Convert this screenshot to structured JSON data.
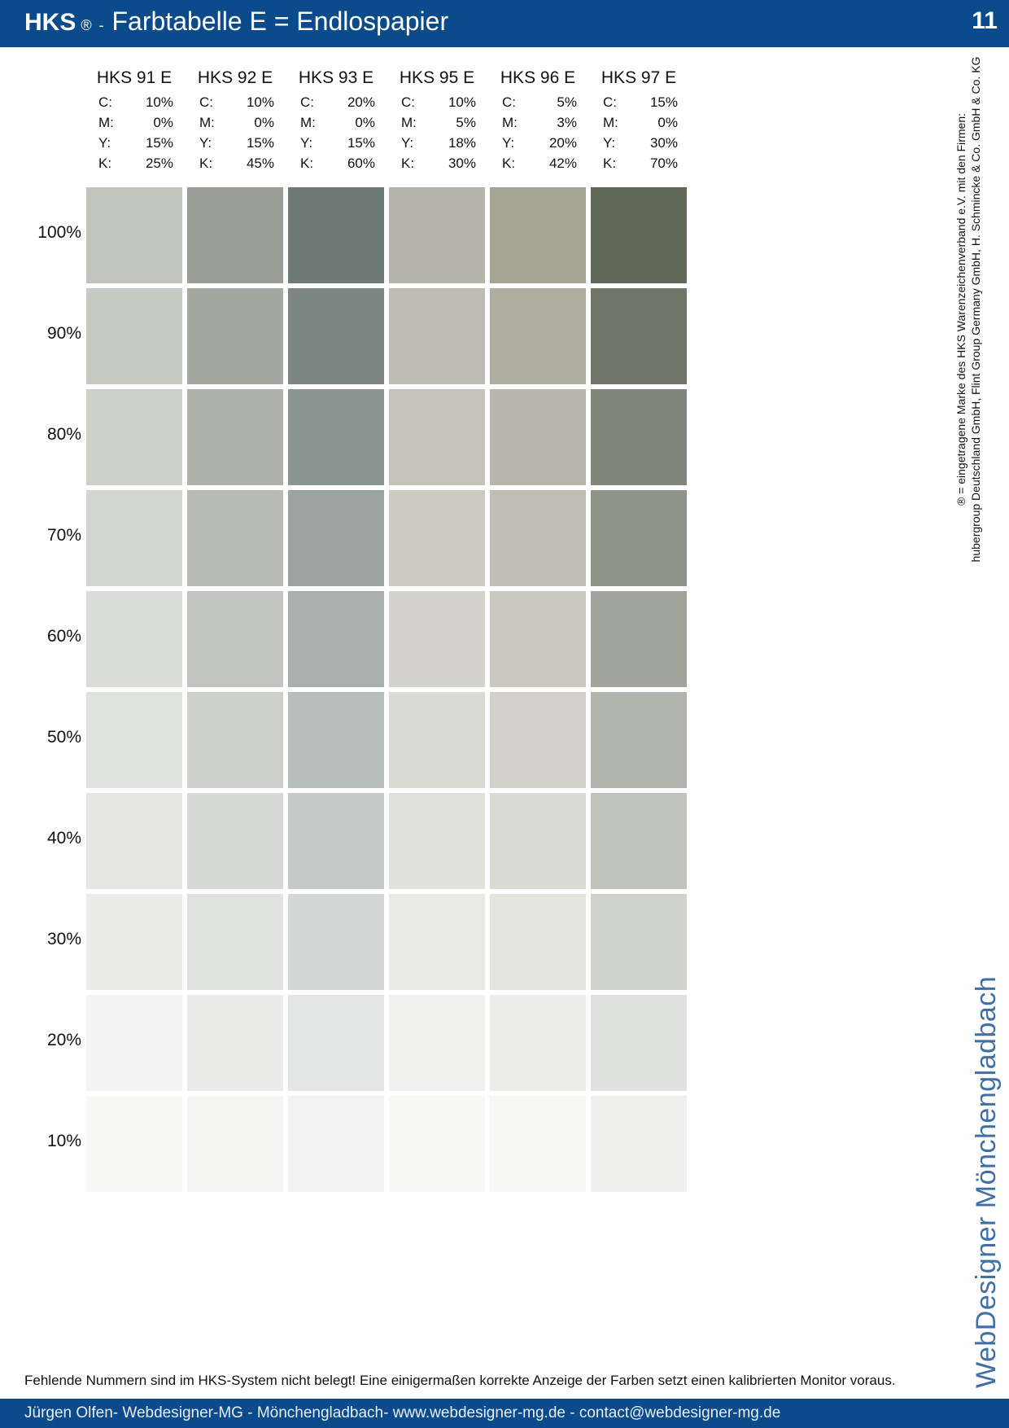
{
  "header": {
    "brand": "HKS",
    "reg_mark": "®",
    "dash": "-",
    "title": "Farbtabelle E = Endlospapier",
    "page_number": "11"
  },
  "columns": [
    {
      "name": "HKS 91 E",
      "cmyk": [
        [
          "C:",
          "10%"
        ],
        [
          "M:",
          "0%"
        ],
        [
          "Y:",
          "15%"
        ],
        [
          "K:",
          "25%"
        ]
      ],
      "color": "#c0c4bc"
    },
    {
      "name": "HKS 92 E",
      "cmyk": [
        [
          "C:",
          "10%"
        ],
        [
          "M:",
          "0%"
        ],
        [
          "Y:",
          "15%"
        ],
        [
          "K:",
          "45%"
        ]
      ],
      "color": "#999e95"
    },
    {
      "name": "HKS 93 E",
      "cmyk": [
        [
          "C:",
          "20%"
        ],
        [
          "M:",
          "0%"
        ],
        [
          "Y:",
          "15%"
        ],
        [
          "K:",
          "60%"
        ]
      ],
      "color": "#6e7b77"
    },
    {
      "name": "HKS 95 E",
      "cmyk": [
        [
          "C:",
          "10%"
        ],
        [
          "M:",
          "5%"
        ],
        [
          "Y:",
          "18%"
        ],
        [
          "K:",
          "30%"
        ]
      ],
      "color": "#b5b4a8"
    },
    {
      "name": "HKS 96 E",
      "cmyk": [
        [
          "C:",
          "5%"
        ],
        [
          "M:",
          "3%"
        ],
        [
          "Y:",
          "20%"
        ],
        [
          "K:",
          "42%"
        ]
      ],
      "color": "#a6a495"
    },
    {
      "name": "HKS 97 E",
      "cmyk": [
        [
          "C:",
          "15%"
        ],
        [
          "M:",
          "0%"
        ],
        [
          "Y:",
          "30%"
        ],
        [
          "K:",
          "70%"
        ]
      ],
      "color": "#606858"
    }
  ],
  "tints": [
    "100%",
    "90%",
    "80%",
    "70%",
    "60%",
    "50%",
    "40%",
    "30%",
    "20%",
    "10%"
  ],
  "tint_fractions": [
    1.0,
    0.9,
    0.8,
    0.7,
    0.6,
    0.5,
    0.4,
    0.3,
    0.2,
    0.1
  ],
  "side_note": {
    "line1": "® = eingetragene Marke des HKS Warenzeichenverband e.V. mit den Firmen:",
    "line2": "hubergroup Deutschland GmbH, Flint Group Germany GmbH, H. Schmincke & Co. GmbH & Co. KG"
  },
  "logo": {
    "text": "WebDesigner Mönchengladbach",
    "icon": "wd-logo-icon",
    "color": "#3f6fa4"
  },
  "notice": "Fehlende Nummern sind im HKS-System nicht belegt! Eine einigermaßen korrekte Anzeige der Farben setzt einen kalibrierten Monitor voraus.",
  "footer": "Jürgen Olfen- Webdesigner-MG - Mönchengladbach- www.webdesigner-mg.de - contact@webdesigner-mg.de",
  "colors": {
    "brand_blue": "#0b4a8b"
  }
}
